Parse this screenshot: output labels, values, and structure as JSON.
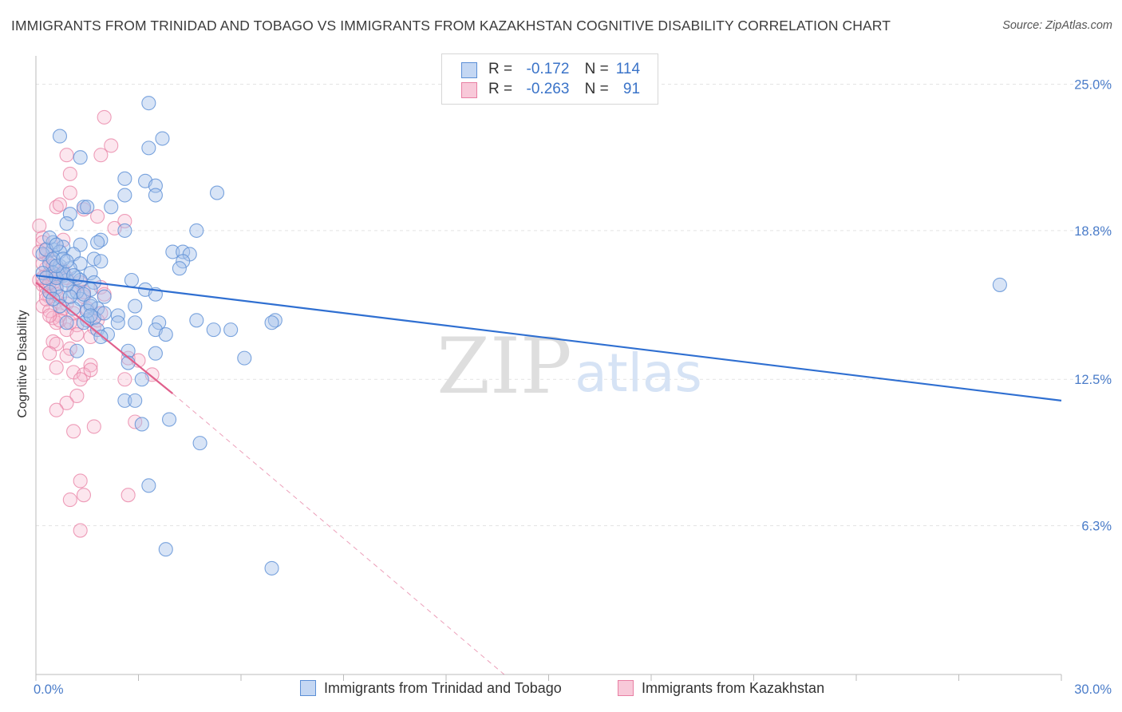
{
  "title": "IMMIGRANTS FROM TRINIDAD AND TOBAGO VS IMMIGRANTS FROM KAZAKHSTAN COGNITIVE DISABILITY CORRELATION CHART",
  "source": "Source: ZipAtlas.com",
  "watermark": {
    "zip": "ZIP",
    "atlas": "atlas"
  },
  "legend": {
    "r_label": "R =",
    "n_label": "N =",
    "series1": {
      "r": "-0.172",
      "n": "114"
    },
    "series2": {
      "r": "-0.263",
      "n": "91"
    }
  },
  "colors": {
    "blue_fill": "#a9c4ec",
    "blue_stroke": "#5b8fd6",
    "blue_line": "#2f6fd1",
    "pink_fill": "#f6b8cd",
    "pink_stroke": "#e87fa3",
    "pink_line": "#e0608c",
    "grid": "#e3e3e3",
    "tick": "#4a7cc9"
  },
  "chart_data": {
    "type": "scatter",
    "title": "IMMIGRANTS FROM TRINIDAD AND TOBAGO VS IMMIGRANTS FROM KAZAKHSTAN COGNITIVE DISABILITY CORRELATION CHART",
    "xlabel": "",
    "ylabel": "Cognitive Disability",
    "xlim": [
      0,
      30
    ],
    "ylim": [
      0,
      26.2
    ],
    "y_ticks": [
      6.3,
      12.5,
      18.8,
      25.0
    ],
    "y_tick_labels": [
      "6.3%",
      "12.5%",
      "18.8%",
      "25.0%"
    ],
    "x_tick_labels": [
      "0.0%",
      "30.0%"
    ],
    "grid": true,
    "series": [
      {
        "name": "Immigrants from Trinidad and Tobago",
        "color": "#5b8fd6",
        "points": [
          [
            3.3,
            24.2
          ],
          [
            0.7,
            22.8
          ],
          [
            3.7,
            22.7
          ],
          [
            1.3,
            21.9
          ],
          [
            3.3,
            22.3
          ],
          [
            2.6,
            21.0
          ],
          [
            3.2,
            20.9
          ],
          [
            3.5,
            20.7
          ],
          [
            2.6,
            20.3
          ],
          [
            3.5,
            20.3
          ],
          [
            5.3,
            20.4
          ],
          [
            1.4,
            19.8
          ],
          [
            1.5,
            19.8
          ],
          [
            2.2,
            19.8
          ],
          [
            1.0,
            19.5
          ],
          [
            0.5,
            18.0
          ],
          [
            0.5,
            18.3
          ],
          [
            0.9,
            19.1
          ],
          [
            2.6,
            18.8
          ],
          [
            4.7,
            18.8
          ],
          [
            1.9,
            18.4
          ],
          [
            1.8,
            18.3
          ],
          [
            1.3,
            18.2
          ],
          [
            0.8,
            18.1
          ],
          [
            0.7,
            17.9
          ],
          [
            1.1,
            17.8
          ],
          [
            4.0,
            17.9
          ],
          [
            4.3,
            17.9
          ],
          [
            4.5,
            17.8
          ],
          [
            1.7,
            17.6
          ],
          [
            1.9,
            17.5
          ],
          [
            1.3,
            17.4
          ],
          [
            0.4,
            17.4
          ],
          [
            0.7,
            17.3
          ],
          [
            4.3,
            17.5
          ],
          [
            0.5,
            17.0
          ],
          [
            1.6,
            17.0
          ],
          [
            0.8,
            16.9
          ],
          [
            1.2,
            16.8
          ],
          [
            0.9,
            16.7
          ],
          [
            2.8,
            16.7
          ],
          [
            1.7,
            16.6
          ],
          [
            4.2,
            17.2
          ],
          [
            0.6,
            16.4
          ],
          [
            1.6,
            16.3
          ],
          [
            1.1,
            16.2
          ],
          [
            2.0,
            16.0
          ],
          [
            1.3,
            15.9
          ],
          [
            3.2,
            16.3
          ],
          [
            3.5,
            16.1
          ],
          [
            1.6,
            15.6
          ],
          [
            2.9,
            15.6
          ],
          [
            1.1,
            15.5
          ],
          [
            1.8,
            15.5
          ],
          [
            2.4,
            15.2
          ],
          [
            1.7,
            15.1
          ],
          [
            1.5,
            15.0
          ],
          [
            0.9,
            14.9
          ],
          [
            1.4,
            14.9
          ],
          [
            2.9,
            14.9
          ],
          [
            3.6,
            14.9
          ],
          [
            4.7,
            15.0
          ],
          [
            7.0,
            15.0
          ],
          [
            6.9,
            14.9
          ],
          [
            1.8,
            14.6
          ],
          [
            2.1,
            14.4
          ],
          [
            3.5,
            14.6
          ],
          [
            3.8,
            14.4
          ],
          [
            5.7,
            14.6
          ],
          [
            5.2,
            14.6
          ],
          [
            1.9,
            14.3
          ],
          [
            1.2,
            13.7
          ],
          [
            2.7,
            13.7
          ],
          [
            3.5,
            13.6
          ],
          [
            6.1,
            13.4
          ],
          [
            2.7,
            13.2
          ],
          [
            3.1,
            12.5
          ],
          [
            2.6,
            11.6
          ],
          [
            2.9,
            11.6
          ],
          [
            3.9,
            10.8
          ],
          [
            3.1,
            10.6
          ],
          [
            4.8,
            9.8
          ],
          [
            3.3,
            8.0
          ],
          [
            3.8,
            5.3
          ],
          [
            6.9,
            4.5
          ],
          [
            28.2,
            16.5
          ],
          [
            0.2,
            17.8
          ],
          [
            0.3,
            18.0
          ],
          [
            0.4,
            18.5
          ],
          [
            0.2,
            17.0
          ],
          [
            0.5,
            17.6
          ],
          [
            0.6,
            16.8
          ],
          [
            1.0,
            17.2
          ],
          [
            1.2,
            16.2
          ],
          [
            0.7,
            16.0
          ],
          [
            1.0,
            16.0
          ],
          [
            0.9,
            16.5
          ],
          [
            0.8,
            17.0
          ],
          [
            1.3,
            16.7
          ],
          [
            1.5,
            15.4
          ],
          [
            2.4,
            14.9
          ],
          [
            1.6,
            15.7
          ],
          [
            0.3,
            16.8
          ],
          [
            0.4,
            16.2
          ],
          [
            0.6,
            17.3
          ],
          [
            0.8,
            17.6
          ],
          [
            0.6,
            18.2
          ],
          [
            0.9,
            17.5
          ],
          [
            0.7,
            15.6
          ],
          [
            1.4,
            16.1
          ],
          [
            2.0,
            15.3
          ],
          [
            1.6,
            15.2
          ],
          [
            0.5,
            15.9
          ],
          [
            1.1,
            16.9
          ]
        ]
      },
      {
        "name": "Immigrants from Kazakhstan",
        "color": "#e87fa3",
        "points": [
          [
            2.0,
            23.6
          ],
          [
            2.2,
            22.4
          ],
          [
            1.9,
            22.0
          ],
          [
            0.9,
            22.0
          ],
          [
            1.0,
            21.2
          ],
          [
            1.0,
            20.4
          ],
          [
            0.6,
            19.8
          ],
          [
            0.7,
            19.9
          ],
          [
            1.4,
            19.7
          ],
          [
            1.8,
            19.4
          ],
          [
            2.6,
            19.2
          ],
          [
            0.1,
            19.0
          ],
          [
            2.3,
            18.9
          ],
          [
            0.2,
            18.5
          ],
          [
            0.2,
            18.3
          ],
          [
            0.8,
            18.4
          ],
          [
            0.3,
            17.8
          ],
          [
            0.4,
            17.6
          ],
          [
            0.3,
            17.2
          ],
          [
            0.4,
            17.0
          ],
          [
            0.8,
            17.1
          ],
          [
            0.1,
            16.7
          ],
          [
            0.2,
            16.5
          ],
          [
            0.3,
            16.4
          ],
          [
            0.5,
            16.6
          ],
          [
            0.6,
            16.3
          ],
          [
            1.1,
            16.4
          ],
          [
            1.3,
            16.6
          ],
          [
            1.9,
            16.4
          ],
          [
            0.3,
            16.1
          ],
          [
            0.4,
            16.0
          ],
          [
            0.6,
            15.8
          ],
          [
            0.9,
            15.7
          ],
          [
            1.4,
            16.0
          ],
          [
            0.2,
            15.6
          ],
          [
            0.4,
            15.4
          ],
          [
            0.7,
            15.2
          ],
          [
            1.5,
            15.5
          ],
          [
            1.9,
            15.3
          ],
          [
            0.5,
            15.1
          ],
          [
            0.6,
            14.9
          ],
          [
            1.2,
            14.8
          ],
          [
            1.7,
            14.7
          ],
          [
            0.9,
            14.6
          ],
          [
            1.2,
            14.4
          ],
          [
            0.5,
            14.1
          ],
          [
            0.6,
            14.0
          ],
          [
            1.0,
            13.8
          ],
          [
            0.4,
            13.6
          ],
          [
            0.9,
            13.5
          ],
          [
            2.7,
            13.4
          ],
          [
            3.0,
            13.3
          ],
          [
            1.6,
            13.1
          ],
          [
            0.6,
            13.0
          ],
          [
            1.1,
            12.8
          ],
          [
            1.4,
            12.7
          ],
          [
            1.6,
            12.9
          ],
          [
            1.3,
            12.5
          ],
          [
            2.6,
            12.5
          ],
          [
            3.4,
            12.7
          ],
          [
            1.2,
            11.8
          ],
          [
            0.9,
            11.5
          ],
          [
            0.6,
            11.2
          ],
          [
            2.9,
            10.7
          ],
          [
            1.7,
            10.5
          ],
          [
            1.1,
            10.3
          ],
          [
            1.3,
            8.2
          ],
          [
            1.4,
            7.6
          ],
          [
            2.7,
            7.6
          ],
          [
            1.0,
            7.4
          ],
          [
            1.3,
            6.1
          ],
          [
            0.2,
            17.4
          ],
          [
            0.3,
            18.0
          ],
          [
            0.1,
            17.9
          ],
          [
            0.2,
            16.8
          ],
          [
            0.5,
            17.3
          ],
          [
            0.7,
            16.9
          ],
          [
            0.4,
            16.6
          ],
          [
            0.3,
            15.9
          ],
          [
            0.8,
            15.5
          ],
          [
            0.7,
            15.0
          ],
          [
            1.0,
            14.9
          ],
          [
            1.4,
            16.2
          ],
          [
            1.8,
            15.0
          ],
          [
            2.0,
            16.1
          ],
          [
            0.6,
            16.1
          ],
          [
            0.5,
            16.9
          ],
          [
            0.9,
            16.8
          ],
          [
            1.1,
            15.3
          ],
          [
            1.6,
            14.3
          ],
          [
            0.4,
            15.2
          ]
        ]
      }
    ],
    "trend_lines": [
      {
        "series": "Immigrants from Trinidad and Tobago",
        "from": [
          0,
          16.9
        ],
        "to": [
          30,
          11.6
        ]
      },
      {
        "series": "Immigrants from Kazakhstan",
        "from": [
          0,
          16.6
        ],
        "to": [
          4.0,
          11.9
        ],
        "dashed_extension_to": [
          13.7,
          0
        ]
      }
    ]
  },
  "bottom_legend": {
    "series1": "Immigrants from Trinidad and Tobago",
    "series2": "Immigrants from Kazakhstan"
  }
}
